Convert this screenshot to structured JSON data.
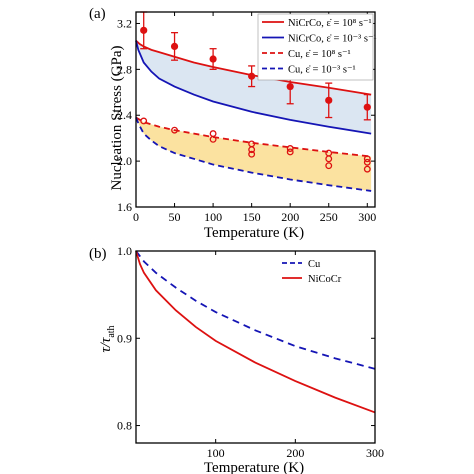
{
  "chart_data": [
    {
      "panel": "(a)",
      "type": "line",
      "xlabel": "Temperature (K)",
      "ylabel": "Nucleation Stress (GPa)",
      "xlim": [
        0,
        310
      ],
      "ylim": [
        1.6,
        3.3
      ],
      "xticks": [
        0,
        50,
        100,
        150,
        200,
        250,
        300
      ],
      "yticks": [
        1.6,
        2.0,
        2.4,
        2.8,
        3.2
      ],
      "grid": false,
      "legend_position": "top-right",
      "colors": {
        "nicrco": "#dd1111",
        "nicrco_low": "#1515b5",
        "cu": "#dd1111",
        "cu_low": "#1515b5",
        "fill_nicrco": "#dbe6f2",
        "fill_cu": "#fbe2a0"
      },
      "series": [
        {
          "name": "NiCrCo, ε̇ = 10⁸ s⁻¹",
          "style": "solid",
          "color": "#dd1111",
          "x": [
            0,
            5,
            10,
            20,
            30,
            50,
            75,
            100,
            150,
            200,
            250,
            305
          ],
          "y": [
            3.05,
            3.02,
            3.0,
            2.97,
            2.95,
            2.91,
            2.86,
            2.82,
            2.75,
            2.69,
            2.64,
            2.58
          ]
        },
        {
          "name": "NiCrCo, ε̇ = 10⁻³ s⁻¹",
          "style": "solid",
          "color": "#1515b5",
          "x": [
            0,
            3,
            10,
            20,
            30,
            50,
            75,
            100,
            150,
            200,
            250,
            305
          ],
          "y": [
            3.05,
            2.97,
            2.86,
            2.78,
            2.72,
            2.65,
            2.58,
            2.52,
            2.43,
            2.36,
            2.3,
            2.24
          ]
        },
        {
          "name": "Cu, ε̇ = 10⁸ s⁻¹",
          "style": "dashed",
          "color": "#dd1111",
          "x": [
            0,
            5,
            10,
            30,
            50,
            100,
            150,
            200,
            250,
            305
          ],
          "y": [
            2.38,
            2.36,
            2.34,
            2.3,
            2.27,
            2.21,
            2.16,
            2.12,
            2.08,
            2.04
          ]
        },
        {
          "name": "Cu, ε̇ = 10⁻³ s⁻¹",
          "style": "dashed",
          "color": "#1515b5",
          "x": [
            0,
            3,
            10,
            20,
            30,
            50,
            75,
            100,
            150,
            200,
            250,
            305
          ],
          "y": [
            2.38,
            2.33,
            2.24,
            2.18,
            2.13,
            2.07,
            2.02,
            1.97,
            1.9,
            1.84,
            1.79,
            1.74
          ]
        }
      ],
      "errorbar_points": {
        "color": "#dd1111",
        "x": [
          10,
          50,
          100,
          150,
          200,
          250,
          300
        ],
        "y": [
          3.14,
          3.0,
          2.89,
          2.74,
          2.65,
          2.53,
          2.47
        ],
        "err": [
          0.16,
          0.12,
          0.09,
          0.09,
          0.15,
          0.15,
          0.11
        ]
      },
      "open_markers": {
        "color": "#dd1111",
        "x": [
          10,
          50,
          100,
          100,
          150,
          150,
          150,
          200,
          200,
          250,
          250,
          250,
          300,
          300,
          300
        ],
        "y": [
          2.35,
          2.27,
          2.24,
          2.19,
          2.15,
          2.1,
          2.06,
          2.11,
          2.08,
          2.07,
          2.02,
          1.96,
          2.02,
          1.99,
          1.93
        ]
      }
    },
    {
      "panel": "(b)",
      "type": "line",
      "xlabel": "Temperature (K)",
      "ylabel": "τ/τath",
      "ylabel_main": "τ/τ",
      "ylabel_sub": "ath",
      "xlim": [
        0,
        300
      ],
      "ylim": [
        0.78,
        1.0
      ],
      "xticks": [
        100,
        200,
        300
      ],
      "yticks": [
        0.8,
        0.9,
        1.0
      ],
      "grid": false,
      "legend_position": "top-right",
      "series": [
        {
          "name": "Cu",
          "style": "dashed",
          "color": "#1515b5",
          "x": [
            0,
            10,
            25,
            50,
            75,
            100,
            150,
            200,
            250,
            300
          ],
          "y": [
            1.0,
            0.988,
            0.975,
            0.958,
            0.943,
            0.93,
            0.909,
            0.891,
            0.877,
            0.865
          ]
        },
        {
          "name": "NiCoCr",
          "style": "solid",
          "color": "#dd1111",
          "x": [
            0,
            5,
            10,
            25,
            50,
            75,
            100,
            150,
            200,
            250,
            300
          ],
          "y": [
            1.0,
            0.985,
            0.975,
            0.955,
            0.932,
            0.913,
            0.897,
            0.872,
            0.851,
            0.832,
            0.815
          ]
        }
      ]
    }
  ]
}
